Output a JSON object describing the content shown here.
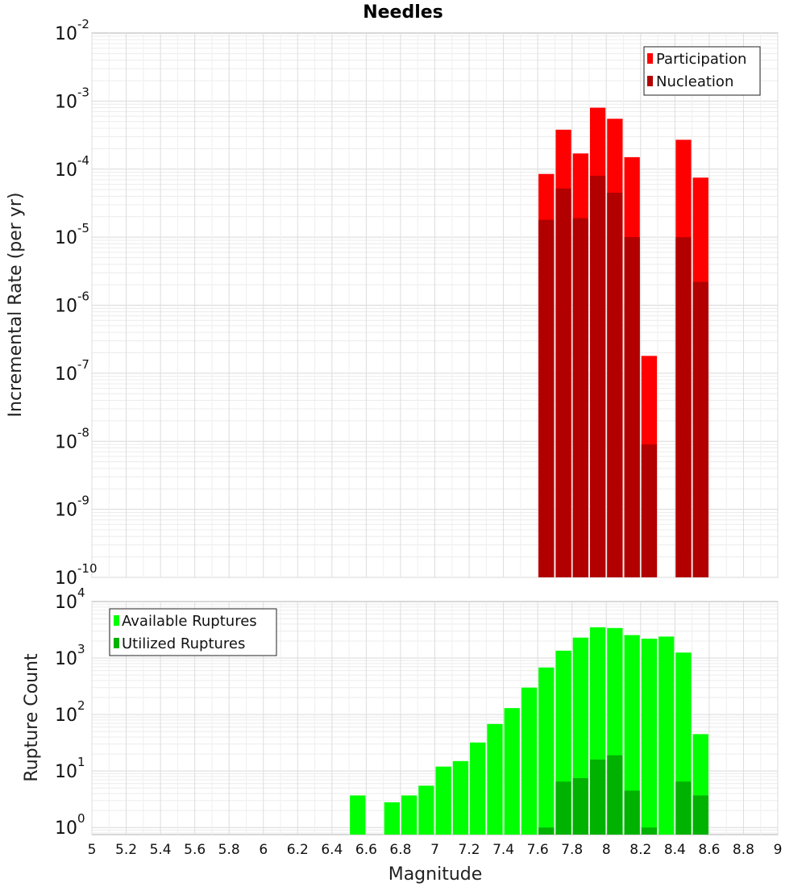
{
  "title": "Needles",
  "chart_data": [
    {
      "type": "bar",
      "ylabel": "Incremental Rate (per yr)",
      "xlabel": "",
      "yscale": "log",
      "ylim": [
        1e-10,
        0.01
      ],
      "xlim": [
        5,
        9
      ],
      "ytick_exponents": [
        -10,
        -9,
        -8,
        -7,
        -6,
        -5,
        -4,
        -3,
        -2
      ],
      "ytick_base": "10",
      "legend": {
        "position": "top-right",
        "entries": [
          "Participation",
          "Nucleation"
        ]
      },
      "x": [
        7.65,
        7.75,
        7.85,
        7.95,
        8.05,
        8.15,
        8.25,
        8.45,
        8.55
      ],
      "series": [
        {
          "name": "Participation",
          "color": "#ff0000",
          "values": [
            8.5e-05,
            0.00038,
            0.00017,
            0.0008,
            0.00055,
            0.00015,
            1.8e-07,
            0.00027,
            7.5e-05
          ]
        },
        {
          "name": "Nucleation",
          "color": "#b20000",
          "values": [
            1.8e-05,
            5.2e-05,
            1.9e-05,
            8e-05,
            4.5e-05,
            1e-05,
            9e-09,
            1e-05,
            2.2e-06
          ]
        }
      ]
    },
    {
      "type": "bar",
      "ylabel": "Rupture Count",
      "xlabel": "Magnitude",
      "yscale": "log",
      "ylim": [
        0.75,
        10000
      ],
      "xlim": [
        5,
        9
      ],
      "ytick_exponents": [
        0,
        1,
        2,
        3,
        4
      ],
      "ytick_base": "10",
      "xticks": [
        "5",
        "5.2",
        "5.4",
        "5.6",
        "5.8",
        "6",
        "6.2",
        "6.4",
        "6.6",
        "6.8",
        "7",
        "7.2",
        "7.4",
        "7.6",
        "7.8",
        "8",
        "8.2",
        "8.4",
        "8.6",
        "8.8",
        "9"
      ],
      "legend": {
        "position": "top-left",
        "entries": [
          "Available Ruptures",
          "Utilized Ruptures"
        ]
      },
      "x": [
        6.55,
        6.75,
        6.85,
        6.95,
        7.05,
        7.15,
        7.25,
        7.35,
        7.45,
        7.55,
        7.65,
        7.75,
        7.85,
        7.95,
        8.05,
        8.15,
        8.25,
        8.35,
        8.45,
        8.55
      ],
      "series": [
        {
          "name": "Available Ruptures",
          "color": "#00ff00",
          "values": [
            3.7,
            2.8,
            3.7,
            5.5,
            12,
            15,
            32,
            68,
            130,
            300,
            680,
            1350,
            2300,
            3500,
            3400,
            2550,
            2200,
            2400,
            1250,
            45
          ]
        },
        {
          "name": "Utilized Ruptures",
          "color": "#00b200",
          "values": [
            null,
            null,
            null,
            null,
            null,
            null,
            null,
            null,
            null,
            null,
            1,
            6.5,
            7.5,
            16,
            19,
            4.5,
            1,
            null,
            6.5,
            3.7
          ]
        }
      ]
    }
  ]
}
